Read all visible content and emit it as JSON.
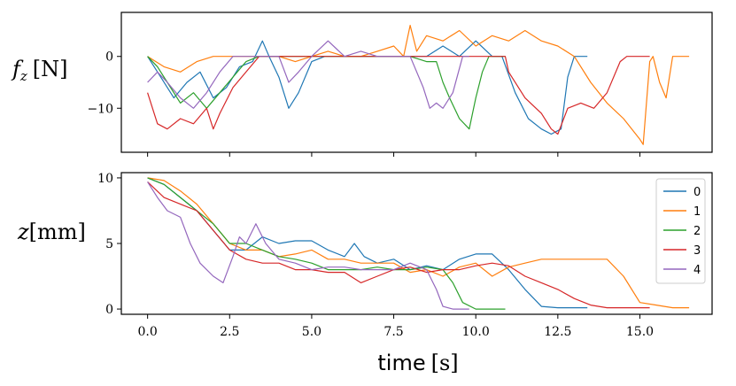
{
  "chart_data": [
    {
      "type": "line",
      "title": "",
      "ylabel_main": "f",
      "ylabel_sub": "z",
      "ylabel_unit": "[N]",
      "xlabel": "",
      "xlim": [
        -0.8,
        17.2
      ],
      "ylim": [
        -18.5,
        8.5
      ],
      "yticks": [
        0,
        -10
      ],
      "ytick_labels": [
        "0",
        "−10"
      ],
      "xticks": [
        0,
        2.5,
        5,
        7.5,
        10,
        12.5,
        15
      ],
      "series": [
        {
          "name": "0",
          "color": "#1f77b4",
          "x": [
            0,
            0.4,
            0.8,
            1.2,
            1.6,
            2.0,
            2.4,
            2.8,
            3.2,
            3.5,
            3.7,
            4.0,
            4.3,
            4.6,
            5.0,
            5.4,
            5.8,
            6.2,
            6.6,
            7.0,
            7.5,
            8.0,
            8.5,
            9.0,
            9.5,
            10.0,
            10.5,
            10.8,
            11.2,
            11.6,
            12.0,
            12.3,
            12.6,
            12.8,
            13.0,
            13.4
          ],
          "y": [
            0,
            -4,
            -8,
            -5,
            -3,
            -8,
            -6,
            -2,
            -1,
            3,
            0,
            -4,
            -10,
            -7,
            -1,
            0,
            0,
            0,
            0,
            0,
            0,
            0,
            0,
            2,
            0,
            3,
            0,
            0,
            -7,
            -12,
            -14,
            -15,
            -14,
            -4,
            0,
            0
          ]
        },
        {
          "name": "1",
          "color": "#ff7f0e",
          "x": [
            0,
            0.5,
            1.0,
            1.5,
            2.0,
            2.5,
            3.0,
            3.5,
            4.0,
            4.5,
            5.0,
            5.5,
            6.0,
            6.5,
            7.0,
            7.5,
            7.8,
            8.0,
            8.2,
            8.5,
            9.0,
            9.5,
            10.0,
            10.5,
            11.0,
            11.5,
            12.0,
            12.5,
            13.0,
            13.5,
            14.0,
            14.5,
            15.0,
            15.1,
            15.3,
            15.4,
            15.6,
            15.8,
            16.0,
            16.5
          ],
          "y": [
            0,
            -2,
            -3,
            -1,
            0,
            0,
            0,
            0,
            0,
            -1,
            0,
            1,
            0,
            0,
            1,
            2,
            0,
            6,
            1,
            4,
            3,
            5,
            2,
            4,
            3,
            5,
            3,
            2,
            0,
            -5,
            -9,
            -12,
            -16,
            -17,
            -1,
            0,
            -5,
            -8,
            0,
            0
          ]
        },
        {
          "name": "2",
          "color": "#2ca02c",
          "x": [
            0,
            0.3,
            0.6,
            1.0,
            1.4,
            1.8,
            2.2,
            2.6,
            3.0,
            3.4,
            3.8,
            4.2,
            4.6,
            5.0,
            5.5,
            6.0,
            6.5,
            7.0,
            7.5,
            8.0,
            8.5,
            8.8,
            9.0,
            9.2,
            9.5,
            9.8,
            10.0,
            10.2,
            10.4,
            10.6,
            10.9
          ],
          "y": [
            0,
            -2,
            -5,
            -9,
            -7,
            -10,
            -7,
            -4,
            -1,
            0,
            0,
            0,
            0,
            0,
            0,
            0,
            0,
            0,
            0,
            0,
            -1,
            -1,
            -5,
            -8,
            -12,
            -14,
            -8,
            -3,
            0,
            0,
            0
          ]
        },
        {
          "name": "3",
          "color": "#d62728",
          "x": [
            0,
            0.3,
            0.6,
            1.0,
            1.4,
            1.8,
            2.0,
            2.2,
            2.6,
            3.0,
            3.4,
            3.8,
            4.2,
            5.0,
            6.0,
            7.0,
            8.0,
            9.0,
            10.0,
            10.5,
            10.9,
            11.0,
            11.5,
            12.0,
            12.3,
            12.5,
            12.8,
            13.2,
            13.6,
            14.0,
            14.4,
            14.6,
            15.0,
            15.3
          ],
          "y": [
            -7,
            -13,
            -14,
            -12,
            -13,
            -10,
            -14,
            -11,
            -6,
            -3,
            0,
            0,
            0,
            0,
            0,
            0,
            0,
            0,
            0,
            0,
            0,
            -3,
            -8,
            -11,
            -14,
            -15,
            -10,
            -9,
            -10,
            -7,
            -1,
            0,
            0,
            0
          ]
        },
        {
          "name": "4",
          "color": "#9467bd",
          "x": [
            0,
            0.3,
            0.6,
            1.0,
            1.4,
            1.8,
            2.2,
            2.6,
            3.0,
            3.5,
            4.0,
            4.3,
            4.6,
            5.0,
            5.5,
            6.0,
            6.5,
            7.0,
            7.5,
            8.0,
            8.4,
            8.6,
            8.8,
            9.0,
            9.3,
            9.6,
            9.8
          ],
          "y": [
            -5,
            -3,
            -5,
            -8,
            -10,
            -7,
            -3,
            0,
            0,
            0,
            0,
            -5,
            -3,
            0,
            3,
            0,
            1,
            0,
            0,
            0,
            -6,
            -10,
            -9,
            -10,
            -7,
            0,
            0
          ]
        }
      ]
    },
    {
      "type": "line",
      "title": "",
      "ylabel_main": "z",
      "ylabel_unit": "[mm]",
      "xlabel_main": "time",
      "xlabel_unit": "[s]",
      "xlim": [
        -0.8,
        17.2
      ],
      "ylim": [
        -0.4,
        10.4
      ],
      "yticks": [
        0,
        5,
        10
      ],
      "ytick_labels": [
        "0",
        "5",
        "10"
      ],
      "xticks": [
        0,
        2.5,
        5,
        7.5,
        10,
        12.5,
        15
      ],
      "xtick_labels": [
        "0.0",
        "2.5",
        "5.0",
        "7.5",
        "10.0",
        "12.5",
        "15.0"
      ],
      "legend_position": "top-right",
      "series": [
        {
          "name": "0",
          "color": "#1f77b4",
          "x": [
            0,
            0.5,
            1.0,
            1.5,
            2.0,
            2.5,
            3.0,
            3.5,
            4.0,
            4.5,
            5.0,
            5.5,
            6.0,
            6.3,
            6.6,
            7.0,
            7.5,
            8.0,
            8.5,
            9.0,
            9.5,
            10.0,
            10.5,
            11.0,
            11.5,
            12.0,
            12.5,
            13.0,
            13.4
          ],
          "y": [
            10,
            9.5,
            8.5,
            7.5,
            6,
            4.5,
            4.5,
            5.5,
            5,
            5.2,
            5.2,
            4.5,
            4,
            5,
            4,
            3.5,
            3.8,
            3,
            3.3,
            3,
            3.8,
            4.2,
            4.2,
            3,
            1.5,
            0.2,
            0.1,
            0.1,
            0.1
          ]
        },
        {
          "name": "1",
          "color": "#ff7f0e",
          "x": [
            0,
            0.5,
            1.0,
            1.5,
            2.0,
            2.5,
            3.0,
            3.5,
            4.0,
            4.5,
            5.0,
            5.5,
            6.0,
            6.5,
            7.0,
            7.5,
            8.0,
            8.5,
            9.0,
            9.5,
            10.0,
            10.5,
            11.0,
            11.5,
            12.0,
            13.0,
            14.0,
            14.5,
            15.0,
            15.5,
            16.0,
            16.5
          ],
          "y": [
            10,
            9.8,
            9,
            8,
            6.5,
            5,
            4.5,
            4.5,
            4,
            4.2,
            4.5,
            3.8,
            3.8,
            3.5,
            3.5,
            3.5,
            2.8,
            3,
            2.5,
            3.2,
            3.5,
            2.5,
            3.2,
            3.5,
            3.8,
            3.8,
            3.8,
            2.5,
            0.5,
            0.3,
            0.1,
            0.1
          ]
        },
        {
          "name": "2",
          "color": "#2ca02c",
          "x": [
            0,
            0.5,
            1.0,
            1.5,
            2.0,
            2.5,
            3.0,
            3.5,
            4.0,
            4.5,
            5.0,
            5.5,
            6.0,
            6.5,
            7.0,
            7.5,
            8.0,
            8.5,
            9.0,
            9.3,
            9.6,
            10.0,
            10.9
          ],
          "y": [
            10,
            9.5,
            8.5,
            7.5,
            6.5,
            5,
            5,
            4.5,
            4,
            3.8,
            3.5,
            3,
            3,
            3,
            3.2,
            3,
            3,
            3.2,
            3,
            2,
            0.5,
            0,
            0
          ]
        },
        {
          "name": "3",
          "color": "#d62728",
          "x": [
            0,
            0.5,
            1.0,
            1.5,
            2.0,
            2.5,
            3.0,
            3.5,
            4.0,
            4.5,
            5.0,
            5.5,
            6.0,
            6.5,
            7.0,
            7.5,
            8.0,
            8.5,
            9.0,
            9.5,
            10.0,
            10.5,
            11.0,
            11.5,
            12.0,
            12.5,
            13.0,
            13.5,
            14.0,
            14.5,
            15.0,
            15.3
          ],
          "y": [
            9.7,
            8.5,
            8,
            7.5,
            6,
            4.5,
            3.8,
            3.5,
            3.5,
            3,
            3,
            2.8,
            2.8,
            2,
            2.5,
            3,
            3.2,
            2.8,
            3,
            3,
            3.3,
            3.5,
            3.3,
            2.5,
            2,
            1.5,
            0.8,
            0.3,
            0.1,
            0.1,
            0.1,
            0.1
          ]
        },
        {
          "name": "4",
          "color": "#9467bd",
          "x": [
            0,
            0.3,
            0.6,
            1.0,
            1.3,
            1.6,
            2.0,
            2.3,
            2.6,
            2.8,
            3.0,
            3.3,
            3.6,
            4.0,
            4.5,
            5.0,
            5.5,
            6.0,
            6.5,
            7.0,
            7.5,
            8.0,
            8.5,
            8.8,
            9.0,
            9.3,
            9.8
          ],
          "y": [
            9.7,
            8.5,
            7.5,
            7,
            5,
            3.5,
            2.5,
            2,
            4,
            5.5,
            5,
            6.5,
            5,
            3.8,
            3.5,
            3,
            3.2,
            3.2,
            3,
            3,
            3,
            3.5,
            3,
            1.5,
            0.2,
            0,
            0
          ]
        }
      ]
    }
  ]
}
